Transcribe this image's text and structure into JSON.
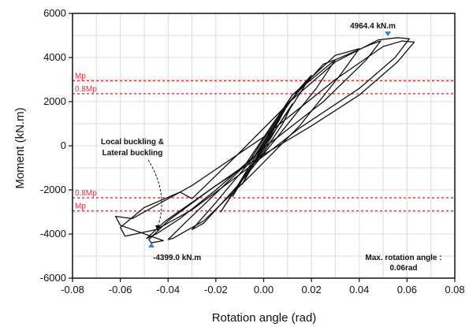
{
  "chart_data": {
    "type": "line",
    "xlabel": "Rotation angle (rad)",
    "ylabel": "Moment (kN.m)",
    "xlim": [
      -0.08,
      0.08
    ],
    "ylim": [
      -6000,
      6000
    ],
    "x_ticks": [
      -0.08,
      -0.06,
      -0.04,
      -0.02,
      0.0,
      0.02,
      0.04,
      0.06,
      0.08
    ],
    "x_tick_labels": [
      "-0.08",
      "-0.06",
      "-0.04",
      "-0.02",
      "0.00",
      "0.02",
      "0.04",
      "0.06",
      "0.08"
    ],
    "y_ticks": [
      -6000,
      -4000,
      -2000,
      0,
      2000,
      4000,
      6000
    ],
    "y_tick_labels": [
      "-6000",
      "-4000",
      "-2000",
      "0",
      "2000",
      "4000",
      "6000"
    ],
    "grid": true,
    "reference_lines": [
      {
        "label": "Mp",
        "value": 2950
      },
      {
        "label": "0.8Mp",
        "value": 2360
      },
      {
        "label": "0.8Mp",
        "value": -2360
      },
      {
        "label": "Mp",
        "value": -2950
      }
    ],
    "peaks": [
      {
        "label": "4964.4 kN.m",
        "x": 0.052,
        "y": 4964.4
      },
      {
        "label": "-4399.0 kN.m",
        "x": -0.047,
        "y": -4399.0
      }
    ],
    "annotations": {
      "buckling": [
        "Local buckling &",
        "Lateral buckling"
      ],
      "max_rotation": [
        "Max. rotation angle :",
        "0.06rad"
      ]
    },
    "loops": [
      [
        [
          0.0,
          0
        ],
        [
          0.004,
          800
        ],
        [
          0.007,
          1250
        ],
        [
          0.004,
          700
        ],
        [
          0.0,
          0
        ],
        [
          -0.004,
          -800
        ],
        [
          -0.007,
          -1300
        ],
        [
          -0.004,
          -700
        ],
        [
          0.0,
          0
        ]
      ],
      [
        [
          -0.002,
          -300
        ],
        [
          0.003,
          700
        ],
        [
          0.009,
          1650
        ],
        [
          0.005,
          900
        ],
        [
          0.0,
          -100
        ],
        [
          -0.005,
          -950
        ],
        [
          -0.009,
          -1750
        ],
        [
          -0.005,
          -1000
        ],
        [
          -0.002,
          -300
        ]
      ],
      [
        [
          0.0,
          -200
        ],
        [
          0.006,
          900
        ],
        [
          0.012,
          1900
        ],
        [
          0.008,
          1000
        ],
        [
          0.0,
          -300
        ],
        [
          -0.008,
          -1300
        ],
        [
          -0.013,
          -2300
        ],
        [
          -0.007,
          -1200
        ],
        [
          0.0,
          -200
        ]
      ],
      [
        [
          -0.003,
          -400
        ],
        [
          0.006,
          1200
        ],
        [
          0.015,
          2600
        ],
        [
          0.02,
          3200
        ],
        [
          0.013,
          2000
        ],
        [
          0.0,
          -50
        ],
        [
          -0.01,
          -1700
        ],
        [
          -0.018,
          -3000
        ],
        [
          -0.012,
          -2000
        ],
        [
          -0.003,
          -400
        ]
      ],
      [
        [
          -0.004,
          -500
        ],
        [
          0.01,
          1900
        ],
        [
          0.025,
          3700
        ],
        [
          0.03,
          3900
        ],
        [
          0.022,
          2600
        ],
        [
          0.005,
          300
        ],
        [
          -0.01,
          -1700
        ],
        [
          -0.025,
          -3500
        ],
        [
          -0.03,
          -3800
        ],
        [
          -0.021,
          -2700
        ],
        [
          -0.004,
          -500
        ]
      ],
      [
        [
          -0.006,
          -700
        ],
        [
          0.012,
          2300
        ],
        [
          0.03,
          4100
        ],
        [
          0.04,
          4400
        ],
        [
          0.032,
          3200
        ],
        [
          0.015,
          900
        ],
        [
          -0.005,
          -1300
        ],
        [
          -0.025,
          -3400
        ],
        [
          -0.038,
          -4200
        ],
        [
          -0.04,
          -4250
        ],
        [
          -0.032,
          -3400
        ],
        [
          -0.006,
          -700
        ]
      ],
      [
        [
          -0.008,
          -900
        ],
        [
          0.012,
          2300
        ],
        [
          0.03,
          3900
        ],
        [
          0.045,
          4600
        ],
        [
          0.049,
          4750
        ],
        [
          0.043,
          3900
        ],
        [
          0.025,
          2000
        ],
        [
          0.0,
          -100
        ],
        [
          -0.02,
          -2000
        ],
        [
          -0.035,
          -3300
        ],
        [
          -0.045,
          -4000
        ],
        [
          -0.049,
          -4200
        ],
        [
          -0.041,
          -3400
        ],
        [
          -0.008,
          -900
        ]
      ],
      [
        [
          -0.03,
          -2400
        ],
        [
          -0.01,
          -300
        ],
        [
          0.012,
          2100
        ],
        [
          0.03,
          3800
        ],
        [
          0.048,
          4800
        ],
        [
          0.056,
          4900
        ],
        [
          0.061,
          4850
        ],
        [
          0.055,
          4000
        ],
        [
          0.04,
          2600
        ],
        [
          0.015,
          800
        ],
        [
          -0.01,
          -1300
        ],
        [
          -0.03,
          -2900
        ],
        [
          -0.045,
          -3800
        ],
        [
          -0.058,
          -4100
        ],
        [
          -0.06,
          -3700
        ],
        [
          -0.05,
          -2800
        ],
        [
          -0.035,
          -2100
        ],
        [
          -0.03,
          -2400
        ]
      ],
      [
        [
          -0.055,
          -3300
        ],
        [
          -0.03,
          -1800
        ],
        [
          0.0,
          400
        ],
        [
          0.03,
          3000
        ],
        [
          0.05,
          4500
        ],
        [
          0.058,
          4750
        ],
        [
          0.063,
          4700
        ],
        [
          0.056,
          3800
        ],
        [
          0.04,
          2300
        ],
        [
          0.02,
          900
        ],
        [
          0.0,
          -400
        ],
        [
          -0.02,
          -1800
        ],
        [
          -0.04,
          -3400
        ],
        [
          -0.048,
          -4250
        ],
        [
          -0.047,
          -4399
        ],
        [
          -0.042,
          -4300
        ],
        [
          -0.06,
          -3600
        ],
        [
          -0.062,
          -3200
        ],
        [
          -0.055,
          -3300
        ]
      ]
    ]
  }
}
